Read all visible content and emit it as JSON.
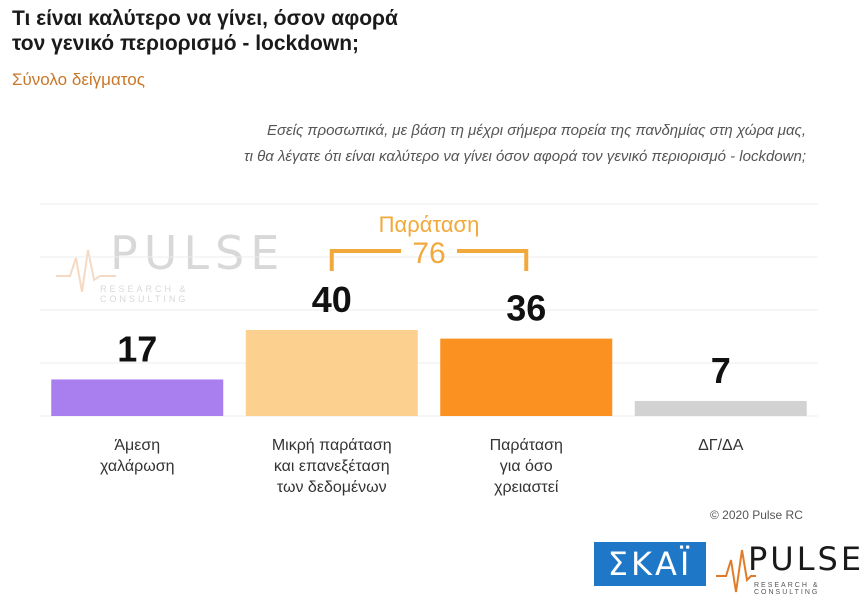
{
  "header": {
    "title_line1": "Τι είναι καλύτερο να γίνει, όσον αφορά",
    "title_line2": "τον γενικό περιορισμό - lockdown;",
    "subtitle": "Σύνολο δείγματος",
    "question_line1": "Εσείς προσωπικά, με βάση τη μέχρι σήμερα πορεία της πανδημίας στη χώρα μας,",
    "question_line2": "τι θα λέγατε ότι είναι καλύτερο να γίνει όσον αφορά τον γενικό περιορισμό - lockdown;"
  },
  "chart_data": {
    "type": "bar",
    "categories": [
      [
        "Άμεση",
        "χαλάρωση"
      ],
      [
        "Μικρή παράταση",
        "και επανεξέταση",
        "των δεδομένων"
      ],
      [
        "Παράταση",
        "για όσο",
        "χρειαστεί"
      ],
      [
        "ΔΓ/ΔΑ"
      ]
    ],
    "values": [
      17,
      40,
      36,
      7
    ],
    "colors": [
      "#a97ff0",
      "#fcd08f",
      "#fb9120",
      "#d2d2d2"
    ],
    "ylim": [
      0,
      40
    ],
    "grid": true,
    "annotation": {
      "label": "Παράταση",
      "value": "76",
      "spans": [
        1,
        2
      ],
      "color": "#f2a93b"
    }
  },
  "watermark": {
    "word": "PULSE",
    "tagline": "RESEARCH & CONSULTING"
  },
  "footer": {
    "copyright": "© 2020 Pulse RC",
    "skai_logo": "ΣΚΑΪ",
    "pulse_logo": "PULSE",
    "pulse_tagline": "RESEARCH & CONSULTING"
  }
}
